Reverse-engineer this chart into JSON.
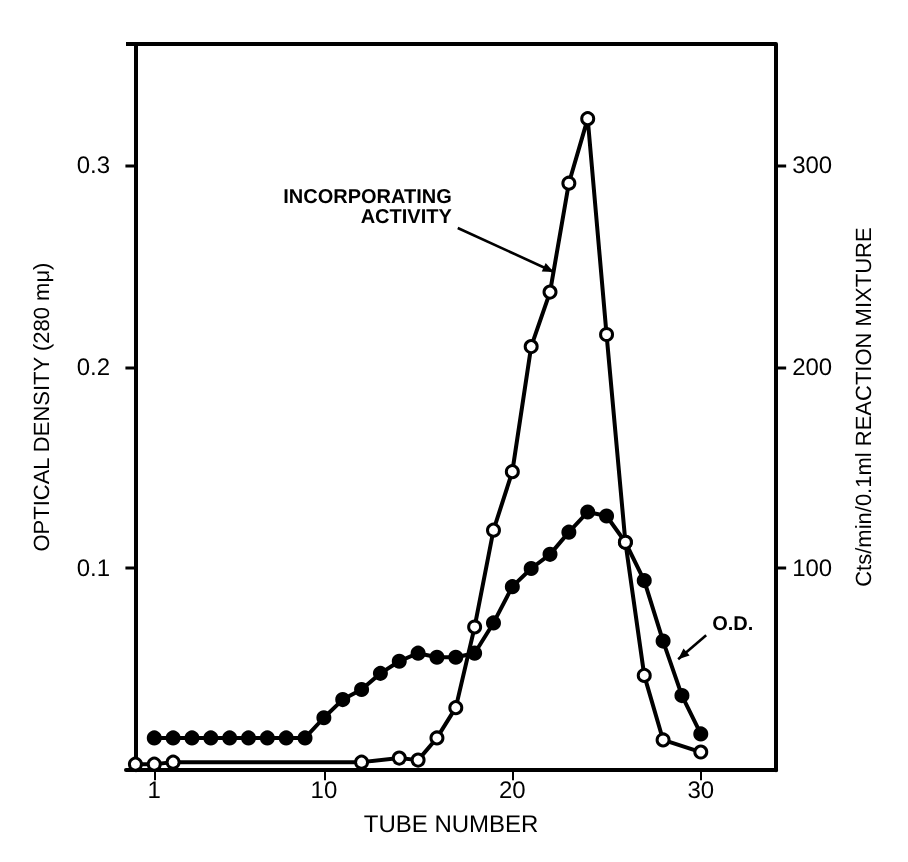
{
  "chart_data": {
    "type": "line",
    "xlabel": "TUBE NUMBER",
    "ylabel": "OPTICAL DENSITY (280 mμ)",
    "y2label": "Cts/min/0.1ml REACTION MIXTURE",
    "xlim": [
      -0.5,
      34
    ],
    "xticks": [
      1,
      10,
      20,
      30
    ],
    "ylim": [
      0,
      0.36
    ],
    "yticks": [
      0.1,
      0.2,
      0.3
    ],
    "y2lim": [
      0,
      360
    ],
    "y2ticks": [
      100,
      200,
      300
    ],
    "grid": false,
    "marker": "circle",
    "line_style": "solid",
    "series": [
      {
        "color": "#000000",
        "x": [
          1,
          2,
          3,
          4,
          5,
          6,
          7,
          8,
          9,
          10,
          11,
          12,
          13,
          14,
          15,
          16,
          17,
          18,
          19,
          20,
          21,
          22,
          23,
          24,
          25,
          26,
          27,
          28,
          29,
          30
        ],
        "values": [
          0.016,
          0.016,
          0.016,
          0.016,
          0.016,
          0.016,
          0.016,
          0.016,
          0.016,
          0.026,
          0.035,
          0.04,
          0.048,
          0.054,
          0.058,
          0.056,
          0.056,
          0.058,
          0.073,
          0.091,
          0.1,
          0.107,
          0.118,
          0.128,
          0.126,
          0.113,
          0.094,
          0.064,
          0.037,
          0.018
        ]
      },
      {
        "color": "#000000",
        "axis": "y2",
        "x": [
          0,
          1,
          2,
          12,
          14,
          15,
          16,
          17,
          18,
          19,
          20,
          21,
          22,
          23,
          24,
          25,
          26,
          27,
          28,
          30
        ],
        "values": [
          3,
          3,
          4,
          4,
          6,
          5,
          16,
          31,
          71,
          119,
          148,
          210,
          237,
          291,
          323,
          216,
          113,
          47,
          15,
          9
        ]
      }
    ],
    "annotations": [
      {
        "text": "INCORPORATING\nACTIVITY",
        "x": 22.2,
        "y": 0.247
      },
      {
        "text": "O.D.",
        "x": 28.8,
        "y": 0.055
      }
    ]
  }
}
